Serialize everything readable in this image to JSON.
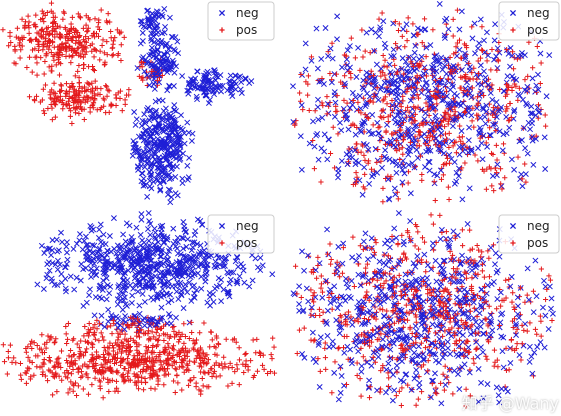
{
  "figure": {
    "watermark": "知乎 @Wany"
  },
  "chart_data": [
    {
      "type": "scatter",
      "panel": "top-left",
      "legend": {
        "placement": "top-right",
        "entries": [
          "neg",
          "pos"
        ]
      },
      "series": [
        {
          "name": "neg",
          "marker": "x",
          "color": "#1f1fd6",
          "clusters": [
            {
              "cx": 0.58,
              "cy": 0.28,
              "rx": 0.08,
              "ry": 0.14,
              "count": 120
            },
            {
              "cx": 0.78,
              "cy": 0.42,
              "rx": 0.12,
              "ry": 0.07,
              "count": 110
            },
            {
              "cx": 0.58,
              "cy": 0.72,
              "rx": 0.1,
              "ry": 0.22,
              "count": 320
            },
            {
              "cx": 0.55,
              "cy": 0.1,
              "rx": 0.05,
              "ry": 0.06,
              "count": 40
            }
          ]
        },
        {
          "name": "pos",
          "marker": "+",
          "color": "#e41a1c",
          "clusters": [
            {
              "cx": 0.23,
              "cy": 0.2,
              "rx": 0.19,
              "ry": 0.15,
              "count": 320
            },
            {
              "cx": 0.28,
              "cy": 0.48,
              "rx": 0.16,
              "ry": 0.1,
              "count": 180
            },
            {
              "cx": 0.54,
              "cy": 0.35,
              "rx": 0.05,
              "ry": 0.06,
              "count": 25
            }
          ]
        }
      ],
      "grid": false,
      "axes_visible": false
    },
    {
      "type": "scatter",
      "panel": "top-right",
      "legend": {
        "placement": "top-right",
        "entries": [
          "neg",
          "pos"
        ]
      },
      "series": [
        {
          "name": "neg",
          "marker": "x",
          "color": "#1f1fd6",
          "clusters": [
            {
              "cx": 0.5,
              "cy": 0.52,
              "rx": 0.47,
              "ry": 0.42,
              "count": 650
            }
          ]
        },
        {
          "name": "pos",
          "marker": "+",
          "color": "#e41a1c",
          "clusters": [
            {
              "cx": 0.5,
              "cy": 0.52,
              "rx": 0.45,
              "ry": 0.4,
              "count": 600
            }
          ]
        }
      ],
      "grid": false,
      "axes_visible": false
    },
    {
      "type": "scatter",
      "panel": "bottom-left",
      "legend": {
        "placement": "top-right",
        "entries": [
          "neg",
          "pos"
        ]
      },
      "series": [
        {
          "name": "neg",
          "marker": "x",
          "color": "#1f1fd6",
          "clusters": [
            {
              "cx": 0.55,
              "cy": 0.27,
              "rx": 0.36,
              "ry": 0.2,
              "count": 650
            },
            {
              "cx": 0.5,
              "cy": 0.55,
              "rx": 0.15,
              "ry": 0.05,
              "count": 50
            }
          ]
        },
        {
          "name": "pos",
          "marker": "+",
          "color": "#e41a1c",
          "clusters": [
            {
              "cx": 0.47,
              "cy": 0.76,
              "rx": 0.46,
              "ry": 0.15,
              "count": 680
            },
            {
              "cx": 0.5,
              "cy": 0.6,
              "rx": 0.3,
              "ry": 0.06,
              "count": 80
            }
          ]
        }
      ],
      "grid": false,
      "axes_visible": false
    },
    {
      "type": "scatter",
      "panel": "bottom-right",
      "legend": {
        "placement": "top-right",
        "entries": [
          "neg",
          "pos"
        ]
      },
      "series": [
        {
          "name": "neg",
          "marker": "x",
          "color": "#1f1fd6",
          "clusters": [
            {
              "cx": 0.48,
              "cy": 0.52,
              "rx": 0.45,
              "ry": 0.42,
              "count": 620
            }
          ]
        },
        {
          "name": "pos",
          "marker": "+",
          "color": "#e41a1c",
          "clusters": [
            {
              "cx": 0.48,
              "cy": 0.52,
              "rx": 0.43,
              "ry": 0.4,
              "count": 620
            }
          ]
        }
      ],
      "grid": false,
      "axes_visible": false
    }
  ]
}
